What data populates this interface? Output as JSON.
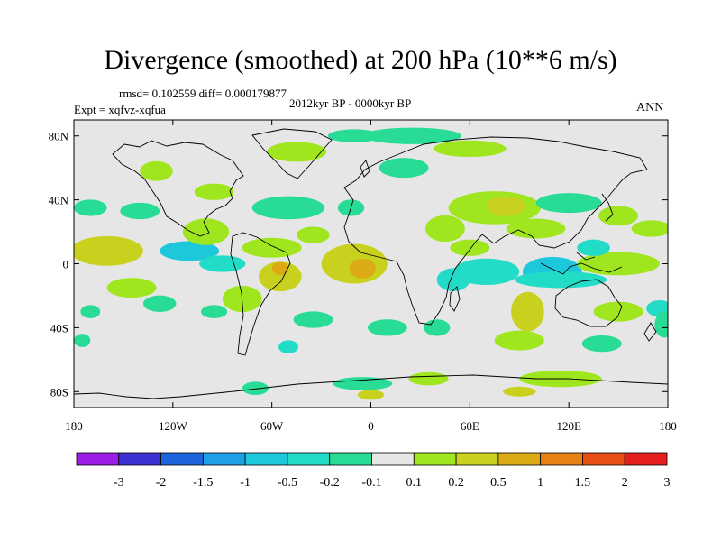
{
  "chart_data": {
    "type": "heatmap",
    "title": "Divergence (smoothed) at 200 hPa (10**6 m/s)",
    "stats": "rmsd= 0.102559 diff= 0.000179877",
    "period": "2012kyr BP - 0000kyr BP",
    "experiment": "Expt = xqfvz-xqfua",
    "season": "ANN",
    "xlim": [
      -180,
      180
    ],
    "ylim": [
      -90,
      90
    ],
    "x_ticks": [
      {
        "value": -180,
        "label": "180"
      },
      {
        "value": -120,
        "label": "120W"
      },
      {
        "value": -60,
        "label": "60W"
      },
      {
        "value": 0,
        "label": "0"
      },
      {
        "value": 60,
        "label": "60E"
      },
      {
        "value": 120,
        "label": "120E"
      },
      {
        "value": 180,
        "label": "180"
      }
    ],
    "y_ticks": [
      {
        "value": 80,
        "label": "80N"
      },
      {
        "value": 40,
        "label": "40N"
      },
      {
        "value": 0,
        "label": "0"
      },
      {
        "value": -40,
        "label": "40S"
      },
      {
        "value": -80,
        "label": "80S"
      }
    ],
    "colorbar": {
      "labels": [
        "-3",
        "-2",
        "-1.5",
        "-1",
        "-0.5",
        "-0.2",
        "-0.1",
        "0.1",
        "0.2",
        "0.5",
        "1",
        "1.5",
        "2",
        "3"
      ],
      "colors": [
        "#9b1ee6",
        "#3c32d2",
        "#1e64dc",
        "#1ea0e6",
        "#1ec8dc",
        "#22dcc8",
        "#28dc96",
        "#e6e6e6",
        "#a0e61e",
        "#c8d21e",
        "#dcaa14",
        "#e68214",
        "#e65014",
        "#e61e1e"
      ]
    },
    "anomalies": [
      {
        "lon": -160,
        "lat": 8,
        "rx": 22,
        "ry": 9,
        "level": 0.5
      },
      {
        "lon": -145,
        "lat": -15,
        "rx": 15,
        "ry": 6,
        "level": 0.2
      },
      {
        "lon": -170,
        "lat": 35,
        "rx": 10,
        "ry": 5,
        "level": -0.1
      },
      {
        "lon": -140,
        "lat": 33,
        "rx": 12,
        "ry": 5,
        "level": -0.1
      },
      {
        "lon": -110,
        "lat": 8,
        "rx": 18,
        "ry": 6,
        "level": -0.5
      },
      {
        "lon": -100,
        "lat": 20,
        "rx": 14,
        "ry": 8,
        "level": 0.2
      },
      {
        "lon": -90,
        "lat": 0,
        "rx": 14,
        "ry": 5,
        "level": -0.2
      },
      {
        "lon": -78,
        "lat": -22,
        "rx": 12,
        "ry": 8,
        "level": 0.2
      },
      {
        "lon": -60,
        "lat": 10,
        "rx": 18,
        "ry": 6,
        "level": 0.2
      },
      {
        "lon": -55,
        "lat": -8,
        "rx": 13,
        "ry": 9,
        "level": 0.5
      },
      {
        "lon": -55,
        "lat": -3,
        "rx": 5,
        "ry": 4,
        "level": 1
      },
      {
        "lon": -50,
        "lat": 35,
        "rx": 22,
        "ry": 7,
        "level": -0.1
      },
      {
        "lon": -35,
        "lat": 18,
        "rx": 10,
        "ry": 5,
        "level": 0.2
      },
      {
        "lon": -12,
        "lat": 35,
        "rx": 8,
        "ry": 5,
        "level": -0.1
      },
      {
        "lon": -35,
        "lat": -35,
        "rx": 12,
        "ry": 5,
        "level": -0.1
      },
      {
        "lon": -50,
        "lat": -52,
        "rx": 6,
        "ry": 4,
        "level": -0.2
      },
      {
        "lon": -10,
        "lat": 0,
        "rx": 20,
        "ry": 12,
        "level": 0.5
      },
      {
        "lon": -5,
        "lat": -3,
        "rx": 8,
        "ry": 6,
        "level": 1
      },
      {
        "lon": -95,
        "lat": -30,
        "rx": 8,
        "ry": 4,
        "level": -0.1
      },
      {
        "lon": -128,
        "lat": -25,
        "rx": 10,
        "ry": 5,
        "level": -0.1
      },
      {
        "lon": -130,
        "lat": 58,
        "rx": 10,
        "ry": 6,
        "level": 0.2
      },
      {
        "lon": -95,
        "lat": 45,
        "rx": 12,
        "ry": 5,
        "level": 0.2
      },
      {
        "lon": -45,
        "lat": 70,
        "rx": 18,
        "ry": 6,
        "level": 0.2
      },
      {
        "lon": -10,
        "lat": 80,
        "rx": 16,
        "ry": 4,
        "level": -0.1
      },
      {
        "lon": 25,
        "lat": 80,
        "rx": 30,
        "ry": 5,
        "level": -0.1
      },
      {
        "lon": 60,
        "lat": 72,
        "rx": 22,
        "ry": 5,
        "level": 0.2
      },
      {
        "lon": 20,
        "lat": 60,
        "rx": 15,
        "ry": 6,
        "level": -0.1
      },
      {
        "lon": 75,
        "lat": 35,
        "rx": 28,
        "ry": 10,
        "level": 0.2
      },
      {
        "lon": 82,
        "lat": 36,
        "rx": 12,
        "ry": 6,
        "level": 0.5
      },
      {
        "lon": 45,
        "lat": 22,
        "rx": 12,
        "ry": 8,
        "level": 0.2
      },
      {
        "lon": 120,
        "lat": 38,
        "rx": 20,
        "ry": 6,
        "level": -0.1
      },
      {
        "lon": 100,
        "lat": 22,
        "rx": 18,
        "ry": 6,
        "level": 0.2
      },
      {
        "lon": 150,
        "lat": 30,
        "rx": 12,
        "ry": 6,
        "level": 0.2
      },
      {
        "lon": 170,
        "lat": 22,
        "rx": 12,
        "ry": 5,
        "level": 0.2
      },
      {
        "lon": 70,
        "lat": -5,
        "rx": 20,
        "ry": 8,
        "level": -0.2
      },
      {
        "lon": 110,
        "lat": -5,
        "rx": 18,
        "ry": 9,
        "level": -0.5
      },
      {
        "lon": 115,
        "lat": -10,
        "rx": 28,
        "ry": 5,
        "level": -0.2
      },
      {
        "lon": 150,
        "lat": 0,
        "rx": 25,
        "ry": 7,
        "level": 0.2
      },
      {
        "lon": 95,
        "lat": -30,
        "rx": 10,
        "ry": 12,
        "level": 0.5
      },
      {
        "lon": 90,
        "lat": -48,
        "rx": 15,
        "ry": 6,
        "level": 0.2
      },
      {
        "lon": 150,
        "lat": -30,
        "rx": 15,
        "ry": 6,
        "level": 0.2
      },
      {
        "lon": 175,
        "lat": -28,
        "rx": 8,
        "ry": 5,
        "level": -0.2
      },
      {
        "lon": 140,
        "lat": -50,
        "rx": 12,
        "ry": 5,
        "level": -0.1
      },
      {
        "lon": 10,
        "lat": -40,
        "rx": 12,
        "ry": 5,
        "level": -0.1
      },
      {
        "lon": 40,
        "lat": -40,
        "rx": 8,
        "ry": 5,
        "level": -0.1
      },
      {
        "lon": 50,
        "lat": -10,
        "rx": 10,
        "ry": 7,
        "level": -0.2
      },
      {
        "lon": 60,
        "lat": 10,
        "rx": 12,
        "ry": 5,
        "level": 0.2
      },
      {
        "lon": -5,
        "lat": -75,
        "rx": 18,
        "ry": 4,
        "level": -0.1
      },
      {
        "lon": 35,
        "lat": -72,
        "rx": 12,
        "ry": 4,
        "level": 0.2
      },
      {
        "lon": 115,
        "lat": -72,
        "rx": 25,
        "ry": 5,
        "level": 0.2
      },
      {
        "lon": 90,
        "lat": -80,
        "rx": 10,
        "ry": 3,
        "level": 0.5
      },
      {
        "lon": -70,
        "lat": -78,
        "rx": 8,
        "ry": 4,
        "level": -0.1
      },
      {
        "lon": 0,
        "lat": -82,
        "rx": 8,
        "ry": 3,
        "level": 0.5
      },
      {
        "lon": -170,
        "lat": -30,
        "rx": 6,
        "ry": 4,
        "level": -0.1
      },
      {
        "lon": -175,
        "lat": -48,
        "rx": 5,
        "ry": 4,
        "level": -0.1
      },
      {
        "lon": 178,
        "lat": -38,
        "rx": 6,
        "ry": 8,
        "level": -0.1
      },
      {
        "lon": 135,
        "lat": 10,
        "rx": 10,
        "ry": 5,
        "level": -0.2
      }
    ]
  }
}
